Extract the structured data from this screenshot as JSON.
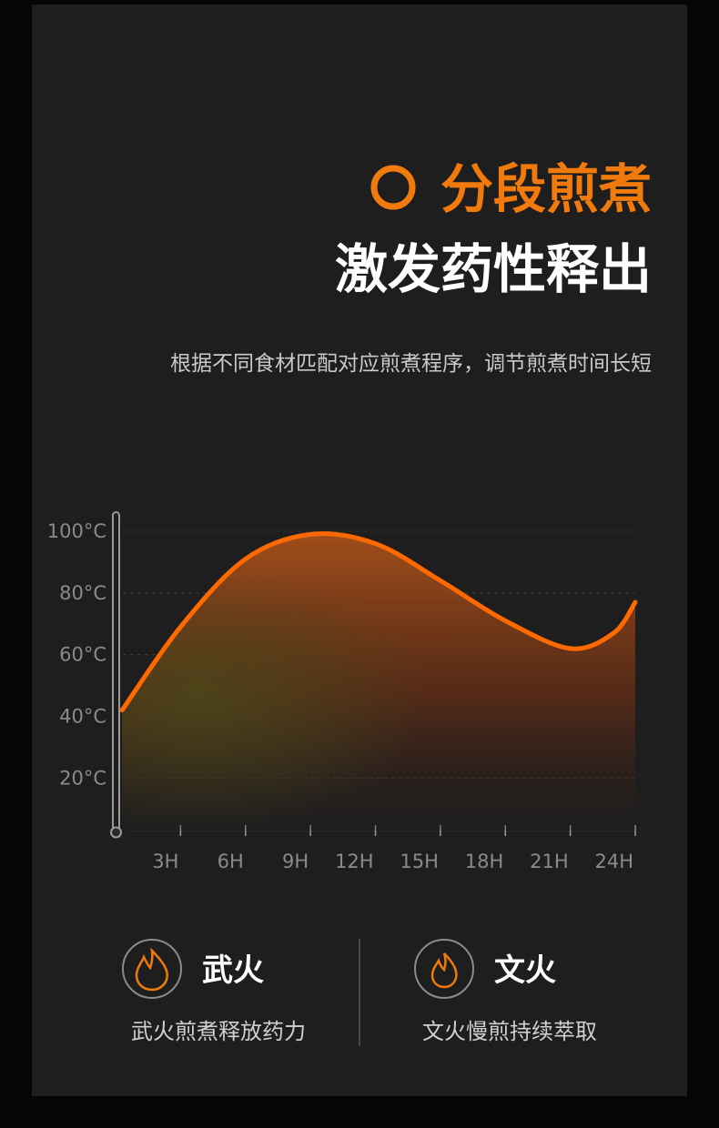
{
  "header": {
    "title": "分段煎煮",
    "headline": "激发药性释出",
    "subtitle": "根据不同食材匹配对应煎煮程序，调节煎煮时间长短"
  },
  "chart_data": {
    "type": "area-line",
    "color": "#ff6a00",
    "x": [
      0.3,
      3,
      6,
      9,
      12,
      15,
      18,
      21,
      23,
      24
    ],
    "values": [
      42,
      69,
      91,
      99,
      96,
      84,
      71,
      62,
      67,
      77
    ],
    "xlim": [
      0,
      24
    ],
    "ylim": [
      3,
      100
    ],
    "xticks": [
      {
        "value": 3,
        "label": "3H"
      },
      {
        "value": 6,
        "label": "6H"
      },
      {
        "value": 9,
        "label": "9H"
      },
      {
        "value": 12,
        "label": "12H"
      },
      {
        "value": 15,
        "label": "15H"
      },
      {
        "value": 18,
        "label": "18H"
      },
      {
        "value": 21,
        "label": "21H"
      },
      {
        "value": 24,
        "label": "24H"
      }
    ],
    "yticks": [
      {
        "value": 20,
        "label": "20°C"
      },
      {
        "value": 40,
        "label": "40°C"
      },
      {
        "value": 60,
        "label": "60°C"
      },
      {
        "value": 80,
        "label": "80°C"
      },
      {
        "value": 100,
        "label": "100°C"
      }
    ],
    "grid": true
  },
  "features": [
    {
      "title": "武火",
      "desc": "武火煎煮释放药力"
    },
    {
      "title": "文火",
      "desc": "文火慢煎持续萃取"
    }
  ]
}
